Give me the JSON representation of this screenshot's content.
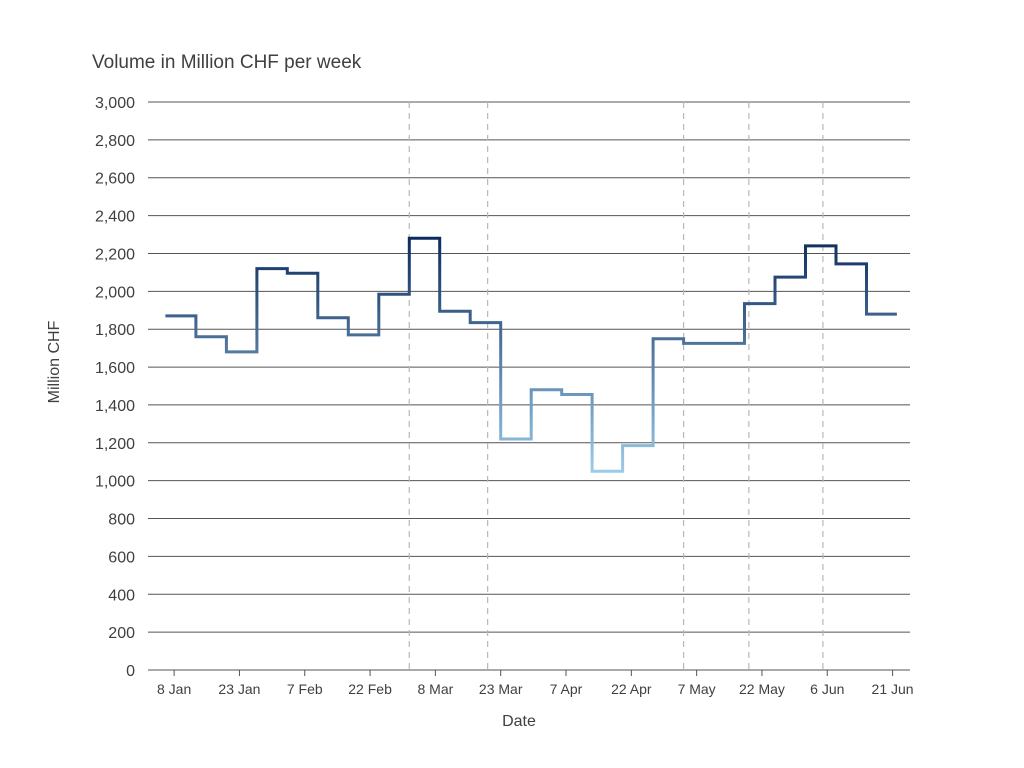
{
  "chart_data": {
    "type": "line",
    "step": true,
    "title": "Volume in Million CHF per week",
    "xlabel": "Date",
    "ylabel": "Million CHF",
    "ylim": [
      0,
      3000
    ],
    "yticks": [
      0,
      200,
      400,
      600,
      800,
      1000,
      1200,
      1400,
      1600,
      1800,
      2000,
      2200,
      2400,
      2600,
      2800,
      3000
    ],
    "ytick_labels": [
      "0",
      "200",
      "400",
      "600",
      "800",
      "1,000",
      "1,200",
      "1,400",
      "1,600",
      "1,800",
      "2,000",
      "2,200",
      "2,400",
      "2,600",
      "2,800",
      "3,000"
    ],
    "xlim": [
      "2020-01-02",
      "2020-06-25"
    ],
    "xticks": [
      "2020-01-08",
      "2020-01-23",
      "2020-02-07",
      "2020-02-22",
      "2020-03-08",
      "2020-03-23",
      "2020-04-07",
      "2020-04-22",
      "2020-05-07",
      "2020-05-22",
      "2020-06-06",
      "2020-06-21"
    ],
    "xtick_labels": [
      "8 Jan",
      "23 Jan",
      "7 Feb",
      "22 Feb",
      "8 Mar",
      "23 Mar",
      "7 Apr",
      "22 Apr",
      "7 May",
      "22 May",
      "6 Jun",
      "21 Jun"
    ],
    "vertical_markers": [
      "2020-03-02",
      "2020-03-20",
      "2020-05-04",
      "2020-05-19",
      "2020-06-05"
    ],
    "grid": true,
    "color_low": "#9ccbe8",
    "color_high": "#0c2c5e",
    "series": [
      {
        "x": [
          "2020-01-06",
          "2020-01-13",
          "2020-01-20",
          "2020-01-27",
          "2020-02-03",
          "2020-02-10",
          "2020-02-17",
          "2020-02-24",
          "2020-03-02",
          "2020-03-09",
          "2020-03-16",
          "2020-03-23",
          "2020-03-30",
          "2020-04-06",
          "2020-04-13",
          "2020-04-20",
          "2020-04-27",
          "2020-05-04",
          "2020-05-11",
          "2020-05-18",
          "2020-05-25",
          "2020-06-01",
          "2020-06-08",
          "2020-06-15"
        ],
        "y": [
          1870,
          1760,
          1680,
          2120,
          2095,
          1860,
          1770,
          1985,
          2280,
          1895,
          1835,
          1220,
          1480,
          1455,
          1050,
          1185,
          1750,
          1725,
          1725,
          1935,
          2075,
          2240,
          2145,
          1880
        ]
      }
    ]
  }
}
